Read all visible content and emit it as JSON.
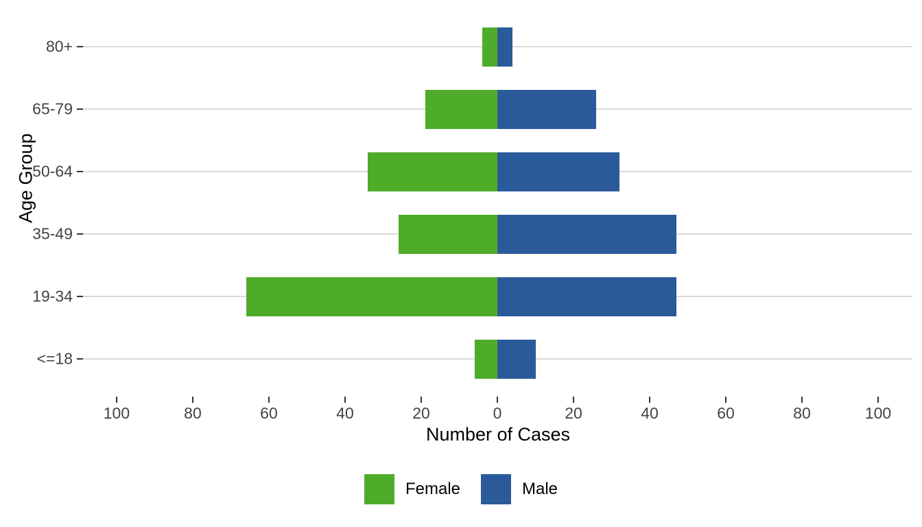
{
  "chart_data": {
    "type": "bar",
    "variant": "diverging-horizontal-pyramid",
    "title": "",
    "xlabel": "Number of Cases",
    "ylabel": "Age Group",
    "categories": [
      "80+",
      "65-79",
      "50-64",
      "35-49",
      "19-34",
      "<=18"
    ],
    "series": [
      {
        "name": "Female",
        "side": "left",
        "color": "#4fac2a",
        "values": [
          4,
          19,
          34,
          26,
          66,
          6
        ]
      },
      {
        "name": "Male",
        "side": "right",
        "color": "#2a5a9a",
        "values": [
          4,
          26,
          32,
          47,
          47,
          10
        ]
      }
    ],
    "x_ticks": [
      -100,
      -80,
      -60,
      -40,
      -20,
      0,
      20,
      40,
      60,
      80,
      100
    ],
    "x_tick_labels": [
      "100",
      "80",
      "60",
      "40",
      "20",
      "0",
      "20",
      "40",
      "60",
      "80",
      "100"
    ],
    "xlim": [
      -109,
      109
    ],
    "grid": "horizontal-major-only",
    "grid_color": "#d9d9d9",
    "axis_text_color": "#434343",
    "legend_position": "bottom-center",
    "background_color": "#ffffff"
  }
}
